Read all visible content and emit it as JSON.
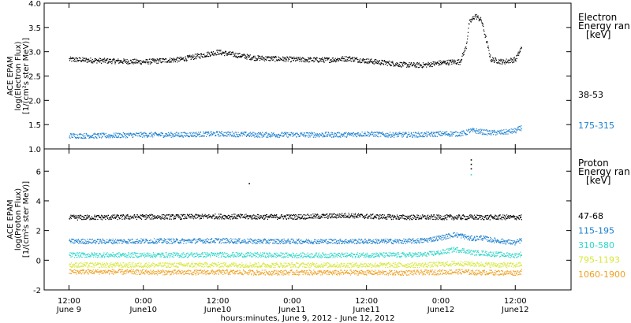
{
  "chart_data": [
    {
      "type": "scatter",
      "panel": "electron",
      "ylabel_lines": [
        "ACE EPAM",
        "log(Electron Flux)",
        "[1/(cm²s ster MeV)]"
      ],
      "ylim": [
        1.0,
        4.0
      ],
      "yticks": [
        1.0,
        1.5,
        2.0,
        2.5,
        3.0,
        3.5,
        4.0
      ],
      "ytick_labels": [
        "1.0",
        "1.5",
        "2.0",
        "2.5",
        "3.0",
        "3.5",
        "4.0"
      ],
      "legend_title_lines": [
        "Electron",
        "Energy ran",
        "[keV]"
      ],
      "x_hours": [
        0,
        6,
        12,
        18,
        24,
        30,
        36,
        40,
        42,
        45,
        48,
        51,
        54,
        57,
        60,
        62,
        63,
        64,
        64.5,
        65.5,
        66.5,
        68,
        70,
        72,
        73
      ],
      "series": [
        {
          "name": "38-53",
          "color": "#000000",
          "values": [
            2.85,
            2.82,
            2.8,
            2.85,
            3.0,
            2.88,
            2.85,
            2.84,
            2.84,
            2.87,
            2.82,
            2.78,
            2.74,
            2.73,
            2.78,
            2.8,
            2.8,
            3.1,
            3.6,
            3.75,
            3.65,
            2.85,
            2.8,
            2.85,
            3.1
          ]
        },
        {
          "name": "175-315",
          "color": "#1a7fcf",
          "values": [
            1.28,
            1.28,
            1.3,
            1.3,
            1.32,
            1.3,
            1.3,
            1.3,
            1.3,
            1.3,
            1.32,
            1.3,
            1.3,
            1.3,
            1.32,
            1.32,
            1.32,
            1.34,
            1.38,
            1.38,
            1.36,
            1.34,
            1.35,
            1.38,
            1.45
          ]
        }
      ]
    },
    {
      "type": "scatter",
      "panel": "proton",
      "ylabel_lines": [
        "ACE EPAM",
        "log(Proton Flux)",
        "[1/(cm²s ster MeV)]"
      ],
      "ylim": [
        -2,
        7.5
      ],
      "yticks": [
        -2,
        0,
        2,
        4,
        6
      ],
      "ytick_labels": [
        "-2",
        "0",
        "2",
        "4",
        "6"
      ],
      "legend_title_lines": [
        "Proton",
        "Energy ran",
        "[keV]"
      ],
      "x_hours": [
        0,
        6,
        12,
        18,
        24,
        30,
        36,
        40,
        42,
        45,
        48,
        51,
        54,
        57,
        60,
        62,
        63,
        64,
        64.5,
        65.5,
        66.5,
        68,
        70,
        72,
        73
      ],
      "series": [
        {
          "name": "47-68",
          "color": "#000000",
          "values": [
            2.9,
            2.92,
            2.95,
            2.95,
            2.98,
            2.95,
            2.95,
            2.98,
            3.0,
            3.05,
            2.98,
            2.95,
            2.92,
            2.92,
            2.92,
            2.92,
            2.92,
            2.92,
            2.92,
            2.92,
            2.92,
            2.92,
            2.92,
            2.92,
            2.92
          ]
        },
        {
          "name": "115-195",
          "color": "#1a7fcf",
          "values": [
            1.3,
            1.3,
            1.32,
            1.32,
            1.35,
            1.3,
            1.3,
            1.3,
            1.3,
            1.3,
            1.3,
            1.3,
            1.3,
            1.35,
            1.55,
            1.75,
            1.7,
            1.6,
            1.5,
            1.5,
            1.55,
            1.4,
            1.3,
            1.2,
            1.4
          ]
        },
        {
          "name": "310-580",
          "color": "#2fd6c8",
          "values": [
            0.38,
            0.38,
            0.38,
            0.38,
            0.4,
            0.38,
            0.36,
            0.36,
            0.36,
            0.36,
            0.38,
            0.38,
            0.38,
            0.4,
            0.55,
            0.75,
            0.72,
            0.65,
            0.58,
            0.52,
            0.52,
            0.45,
            0.4,
            0.35,
            0.45
          ]
        },
        {
          "name": "795-1193",
          "color": "#d6e83a",
          "values": [
            -0.3,
            -0.3,
            -0.3,
            -0.3,
            -0.28,
            -0.3,
            -0.3,
            -0.3,
            -0.3,
            -0.3,
            -0.3,
            -0.3,
            -0.3,
            -0.3,
            -0.25,
            -0.2,
            -0.2,
            -0.2,
            -0.22,
            -0.25,
            -0.25,
            -0.28,
            -0.3,
            -0.3,
            -0.25
          ]
        },
        {
          "name": "1060-1900",
          "color": "#f0a020",
          "values": [
            -0.75,
            -0.75,
            -0.78,
            -0.8,
            -0.78,
            -0.8,
            -0.8,
            -0.8,
            -0.82,
            -0.8,
            -0.8,
            -0.82,
            -0.82,
            -0.8,
            -0.78,
            -0.75,
            -0.75,
            -0.75,
            -0.78,
            -0.8,
            -0.8,
            -0.8,
            -0.82,
            -0.82,
            -0.75
          ]
        }
      ],
      "outliers": [
        {
          "x_hour": 29.0,
          "y": 5.2,
          "color": "#000000"
        },
        {
          "x_hour": 64.8,
          "y": 6.8,
          "color": "#000000"
        },
        {
          "x_hour": 64.8,
          "y": 6.5,
          "color": "#000000"
        },
        {
          "x_hour": 64.8,
          "y": 6.2,
          "color": "#000000"
        },
        {
          "x_hour": 64.8,
          "y": 5.8,
          "color": "#2fd6c8"
        }
      ]
    }
  ],
  "x_axis": {
    "xlim_hours": [
      -4,
      81
    ],
    "tick_hours": [
      0,
      12,
      24,
      36,
      48,
      60,
      72
    ],
    "tick_labels_top": [
      "12:00",
      "0:00",
      "12:00",
      "0:00",
      "12:00",
      "0:00",
      "12:00"
    ],
    "tick_labels_bottom": [
      "June 9",
      "June10",
      "June10",
      "June11",
      "June11",
      "June12",
      "June12"
    ],
    "title": "hours:minutes,  June  9, 2012 - June 12, 2012"
  }
}
